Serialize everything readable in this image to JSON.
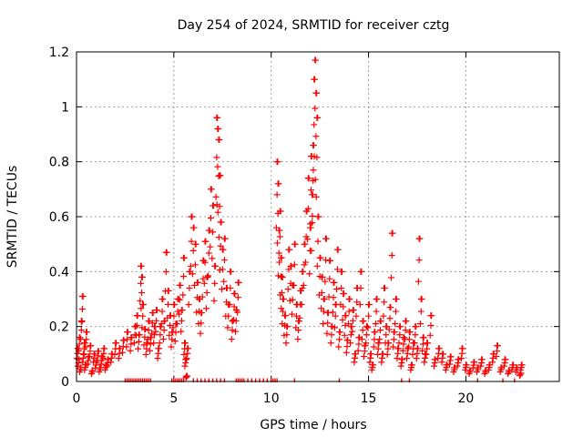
{
  "chart_data": {
    "type": "scatter",
    "title": "Day 254 of 2024, SRMTID for receiver cztg",
    "xlabel": "GPS time / hours",
    "ylabel": "SRMTID / TECUs",
    "xlim": [
      0,
      24.8
    ],
    "ylim": [
      0,
      1.2
    ],
    "grid": true,
    "marker": "+",
    "color": "#ff0000",
    "x_ticks": [
      0,
      5,
      10,
      15,
      20
    ],
    "x_tick_labels": [
      "0",
      "5",
      "10",
      "15",
      "20"
    ],
    "y_ticks": [
      0,
      0.2,
      0.4,
      0.6,
      0.8,
      1.0,
      1.2
    ],
    "y_tick_labels": [
      "0",
      "0.2",
      "0.4",
      "0.6",
      "0.8",
      "1",
      "1.2"
    ],
    "series": [
      {
        "name": "SRMTID",
        "points": [
          [
            0.05,
            0.12
          ],
          [
            0.1,
            0.08
          ],
          [
            0.15,
            0.16
          ],
          [
            0.2,
            0.05
          ],
          [
            0.25,
            0.22
          ],
          [
            0.3,
            0.31
          ],
          [
            0.35,
            0.1
          ],
          [
            0.4,
            0.14
          ],
          [
            0.45,
            0.06
          ],
          [
            0.5,
            0.18
          ],
          [
            0.6,
            0.09
          ],
          [
            0.7,
            0.13
          ],
          [
            0.8,
            0.04
          ],
          [
            0.9,
            0.1
          ],
          [
            1.0,
            0.07
          ],
          [
            1.1,
            0.11
          ],
          [
            1.2,
            0.05
          ],
          [
            1.3,
            0.09
          ],
          [
            1.4,
            0.12
          ],
          [
            1.5,
            0.06
          ],
          [
            1.6,
            0.08
          ],
          [
            1.8,
            0.1
          ],
          [
            2.0,
            0.14
          ],
          [
            2.2,
            0.12
          ],
          [
            2.4,
            0.15
          ],
          [
            2.6,
            0.18
          ],
          [
            2.8,
            0.16
          ],
          [
            3.0,
            0.2
          ],
          [
            3.1,
            0.24
          ],
          [
            3.2,
            0.17
          ],
          [
            3.3,
            0.42
          ],
          [
            3.35,
            0.38
          ],
          [
            3.4,
            0.28
          ],
          [
            3.5,
            0.19
          ],
          [
            3.6,
            0.14
          ],
          [
            3.7,
            0.22
          ],
          [
            3.8,
            0.16
          ],
          [
            3.9,
            0.25
          ],
          [
            4.0,
            0.2
          ],
          [
            4.1,
            0.26
          ],
          [
            4.2,
            0.12
          ],
          [
            4.3,
            0.2
          ],
          [
            4.4,
            0.3
          ],
          [
            4.5,
            0.22
          ],
          [
            4.6,
            0.47
          ],
          [
            4.7,
            0.33
          ],
          [
            4.8,
            0.24
          ],
          [
            4.9,
            0.18
          ],
          [
            5.0,
            0.28
          ],
          [
            5.1,
            0.21
          ],
          [
            5.2,
            0.3
          ],
          [
            5.3,
            0.35
          ],
          [
            5.4,
            0.26
          ],
          [
            5.5,
            0.45
          ],
          [
            5.55,
            0.14
          ],
          [
            5.6,
            0.08
          ],
          [
            5.65,
            0.02
          ],
          [
            5.7,
            0.12
          ],
          [
            5.8,
            0.4
          ],
          [
            5.9,
            0.6
          ],
          [
            6.0,
            0.56
          ],
          [
            6.1,
            0.5
          ],
          [
            6.2,
            0.36
          ],
          [
            6.3,
            0.3
          ],
          [
            6.4,
            0.25
          ],
          [
            6.5,
            0.44
          ],
          [
            6.6,
            0.51
          ],
          [
            6.7,
            0.38
          ],
          [
            6.8,
            0.55
          ],
          [
            6.9,
            0.7
          ],
          [
            7.0,
            0.64
          ],
          [
            7.1,
            0.42
          ],
          [
            7.2,
            0.96
          ],
          [
            7.25,
            0.92
          ],
          [
            7.3,
            0.88
          ],
          [
            7.35,
            0.75
          ],
          [
            7.4,
            0.58
          ],
          [
            7.5,
            0.48
          ],
          [
            7.6,
            0.52
          ],
          [
            7.7,
            0.34
          ],
          [
            7.8,
            0.28
          ],
          [
            7.9,
            0.4
          ],
          [
            8.0,
            0.22
          ],
          [
            8.1,
            0.32
          ],
          [
            8.2,
            0.26
          ],
          [
            8.3,
            0.36
          ],
          [
            10.3,
            0.8
          ],
          [
            10.35,
            0.72
          ],
          [
            10.4,
            0.55
          ],
          [
            10.45,
            0.62
          ],
          [
            10.5,
            0.45
          ],
          [
            10.55,
            0.38
          ],
          [
            10.6,
            0.3
          ],
          [
            10.7,
            0.24
          ],
          [
            10.8,
            0.2
          ],
          [
            10.9,
            0.48
          ],
          [
            11.0,
            0.42
          ],
          [
            11.1,
            0.35
          ],
          [
            11.2,
            0.5
          ],
          [
            11.3,
            0.28
          ],
          [
            11.4,
            0.22
          ],
          [
            11.5,
            0.33
          ],
          [
            11.6,
            0.4
          ],
          [
            11.7,
            0.5
          ],
          [
            11.8,
            0.62
          ],
          [
            11.9,
            0.74
          ],
          [
            12.0,
            0.56
          ],
          [
            12.05,
            0.82
          ],
          [
            12.1,
            0.68
          ],
          [
            12.15,
            0.86
          ],
          [
            12.2,
            1.1
          ],
          [
            12.25,
            1.17
          ],
          [
            12.3,
            1.05
          ],
          [
            12.35,
            0.96
          ],
          [
            12.4,
            0.6
          ],
          [
            12.5,
            0.45
          ],
          [
            12.6,
            0.38
          ],
          [
            12.7,
            0.3
          ],
          [
            12.8,
            0.52
          ],
          [
            12.9,
            0.25
          ],
          [
            13.0,
            0.44
          ],
          [
            13.1,
            0.2
          ],
          [
            13.2,
            0.36
          ],
          [
            13.3,
            0.28
          ],
          [
            13.4,
            0.48
          ],
          [
            13.5,
            0.18
          ],
          [
            13.6,
            0.4
          ],
          [
            13.7,
            0.32
          ],
          [
            13.8,
            0.24
          ],
          [
            13.9,
            0.15
          ],
          [
            14.0,
            0.3
          ],
          [
            14.1,
            0.2
          ],
          [
            14.2,
            0.26
          ],
          [
            14.3,
            0.1
          ],
          [
            14.4,
            0.34
          ],
          [
            14.5,
            0.16
          ],
          [
            14.6,
            0.4
          ],
          [
            14.7,
            0.22
          ],
          [
            14.8,
            0.13
          ],
          [
            14.9,
            0.2
          ],
          [
            15.0,
            0.28
          ],
          [
            15.1,
            0.1
          ],
          [
            15.2,
            0.06
          ],
          [
            15.3,
            0.18
          ],
          [
            15.4,
            0.3
          ],
          [
            15.5,
            0.14
          ],
          [
            15.6,
            0.22
          ],
          [
            15.7,
            0.1
          ],
          [
            15.8,
            0.34
          ],
          [
            15.9,
            0.2
          ],
          [
            16.0,
            0.14
          ],
          [
            16.1,
            0.27
          ],
          [
            16.2,
            0.54
          ],
          [
            16.3,
            0.18
          ],
          [
            16.4,
            0.3
          ],
          [
            16.5,
            0.12
          ],
          [
            16.6,
            0.2
          ],
          [
            16.7,
            0.08
          ],
          [
            16.8,
            0.16
          ],
          [
            16.9,
            0.22
          ],
          [
            17.0,
            0.12
          ],
          [
            17.1,
            0.18
          ],
          [
            17.2,
            0.06
          ],
          [
            17.3,
            0.14
          ],
          [
            17.4,
            0.2
          ],
          [
            17.5,
            0.12
          ],
          [
            17.6,
            0.52
          ],
          [
            17.7,
            0.3
          ],
          [
            17.8,
            0.16
          ],
          [
            17.9,
            0.1
          ],
          [
            18.0,
            0.14
          ],
          [
            18.2,
            0.24
          ],
          [
            18.4,
            0.08
          ],
          [
            18.6,
            0.12
          ],
          [
            18.8,
            0.1
          ],
          [
            19.0,
            0.06
          ],
          [
            19.2,
            0.09
          ],
          [
            19.4,
            0.05
          ],
          [
            19.6,
            0.08
          ],
          [
            19.8,
            0.12
          ],
          [
            20.0,
            0.06
          ],
          [
            20.2,
            0.04
          ],
          [
            20.4,
            0.07
          ],
          [
            20.6,
            0.05
          ],
          [
            20.8,
            0.08
          ],
          [
            21.0,
            0.04
          ],
          [
            21.2,
            0.06
          ],
          [
            21.4,
            0.1
          ],
          [
            21.6,
            0.13
          ],
          [
            21.8,
            0.05
          ],
          [
            22.0,
            0.08
          ],
          [
            22.2,
            0.04
          ],
          [
            22.4,
            0.06
          ],
          [
            22.6,
            0.05
          ],
          [
            22.8,
            0.03
          ],
          [
            22.85,
            0.06
          ]
        ],
        "zero_points_x": [
          2.5,
          2.6,
          2.7,
          2.8,
          2.9,
          3.0,
          3.1,
          3.2,
          3.3,
          3.4,
          3.5,
          3.6,
          3.7,
          3.8,
          4.9,
          5.0,
          5.1,
          5.2,
          5.3,
          5.4,
          5.5,
          6.0,
          6.2,
          6.4,
          6.6,
          6.8,
          7.0,
          7.2,
          7.4,
          7.6,
          8.2,
          8.3,
          8.4,
          8.5,
          8.6,
          8.8,
          9.0,
          9.2,
          9.4,
          9.6,
          9.8,
          10.0,
          10.1,
          10.2,
          10.3,
          11.2,
          13.5,
          16.7,
          17.1,
          20.6,
          21.9,
          22.5
        ]
      }
    ]
  }
}
